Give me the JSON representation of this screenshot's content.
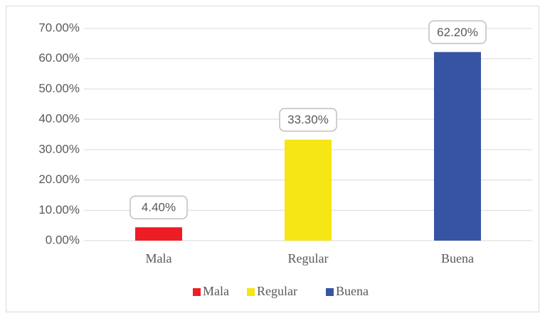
{
  "chart_data": {
    "type": "bar",
    "categories": [
      "Mala",
      "Regular",
      "Buena"
    ],
    "values": [
      4.4,
      33.3,
      62.2
    ],
    "value_labels": [
      "4.40%",
      "33.30%",
      "62.20%"
    ],
    "colors": [
      "#ee1c25",
      "#f5e614",
      "#3753a4"
    ],
    "ylim": [
      0,
      70
    ],
    "yticks": [
      {
        "value": 0,
        "label": "0.00%"
      },
      {
        "value": 10,
        "label": "10.00%"
      },
      {
        "value": 20,
        "label": "20.00%"
      },
      {
        "value": 30,
        "label": "30.00%"
      },
      {
        "value": 40,
        "label": "40.00%"
      },
      {
        "value": 50,
        "label": "50.00%"
      },
      {
        "value": 60,
        "label": "60.00%"
      },
      {
        "value": 70,
        "label": "70.00%"
      }
    ],
    "grid": true,
    "legend": "bottom"
  }
}
